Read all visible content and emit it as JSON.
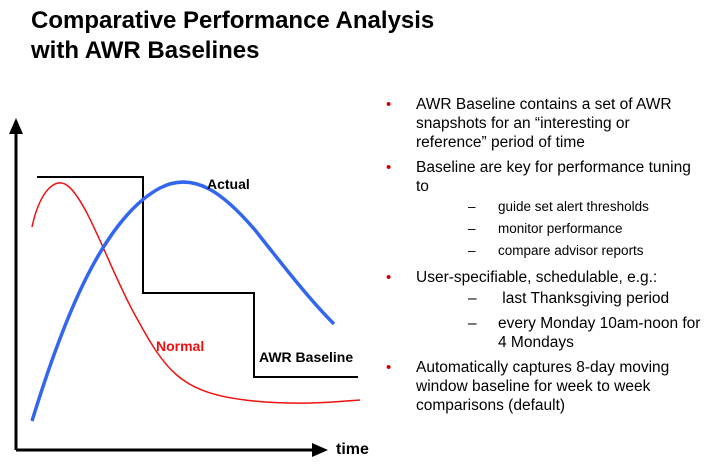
{
  "title": {
    "line1": "Comparative Performance Analysis",
    "line2": "with AWR Baselines"
  },
  "chart": {
    "labels": {
      "actual": "Actual",
      "normal": "Normal",
      "awr_baseline": "AWR Baseline",
      "x_axis": "time"
    },
    "colors": {
      "actual": "#3366ee",
      "normal": "#ee1111",
      "awr_baseline": "#000000",
      "axis": "#000000"
    }
  },
  "bullets": [
    {
      "text": "AWR Baseline contains a set of AWR snapshots for an “interesting or reference” period of time",
      "subitems": []
    },
    {
      "text": "Baseline are key for performance tuning to",
      "subitems": [
        "guide set alert thresholds",
        "monitor performance",
        "compare advisor reports"
      ]
    },
    {
      "text": "User-specifiable, schedulable, e.g.:",
      "subitems": [
        " last Thanksgiving period",
        "every Monday 10am-noon for 4 Mondays"
      ]
    },
    {
      "text": "Automatically captures 8-day moving window baseline for week to week comparisons (default)",
      "subitems": []
    }
  ],
  "icons": {
    "bullet": "•",
    "dash": "–"
  },
  "bullet_color": "#cc0000"
}
